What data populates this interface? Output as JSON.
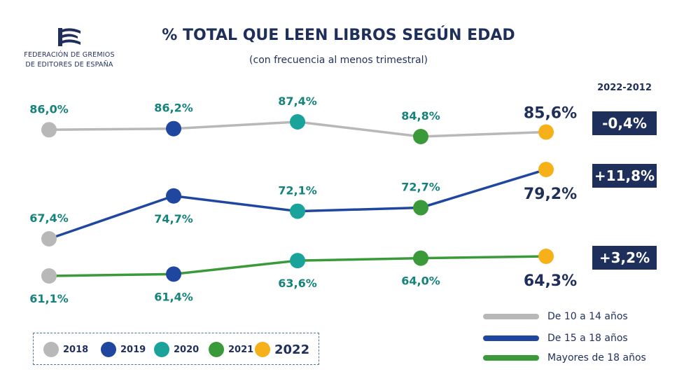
{
  "brand": {
    "line1": "FEDERACIÓN DE GREMIOS",
    "line2": "DE EDITORES DE ESPAÑA"
  },
  "header": {
    "title": "% TOTAL QUE LEEN LIBROS SEGÚN EDAD",
    "subtitle": "(con frecuencia al menos trimestral)"
  },
  "diff_header": "2022-2012",
  "colors": {
    "2018": "#b8b8b8",
    "2019": "#1f47a0",
    "2020": "#1aa39a",
    "2021": "#3a9a3a",
    "2022": "#f5b01a",
    "navy": "#1f2f5c",
    "teal_text": "#15837b"
  },
  "year_legend": [
    {
      "label": "2018",
      "color": "#b8b8b8"
    },
    {
      "label": "2019",
      "color": "#1f47a0"
    },
    {
      "label": "2020",
      "color": "#1aa39a"
    },
    {
      "label": "2021",
      "color": "#3a9a3a"
    },
    {
      "label": "2022",
      "color": "#f5b01a"
    }
  ],
  "chart_data": {
    "type": "line",
    "title": "% TOTAL QUE LEEN LIBROS SEGÚN EDAD",
    "subtitle": "(con frecuencia al menos trimestral)",
    "x": [
      "2018",
      "2019",
      "2020",
      "2021",
      "2022"
    ],
    "series": [
      {
        "name": "De 10 a 14 años",
        "line_color": "#b8b8b8",
        "values": [
          86.0,
          86.2,
          87.4,
          84.8,
          85.6
        ],
        "labels": [
          "86,0%",
          "86,2%",
          "87,4%",
          "84,8%",
          "85,6%"
        ],
        "diff": "-0,4%"
      },
      {
        "name": "De 15 a 18 años",
        "line_color": "#1f47a0",
        "values": [
          67.4,
          74.7,
          72.1,
          72.7,
          79.2
        ],
        "labels": [
          "67,4%",
          "74,7%",
          "72,1%",
          "72,7%",
          "79,2%"
        ],
        "diff": "+11,8%"
      },
      {
        "name": "Mayores de 18 años",
        "line_color": "#3a9a3a",
        "values": [
          61.1,
          61.4,
          63.6,
          64.0,
          64.3
        ],
        "labels": [
          "61,1%",
          "61,4%",
          "63,6%",
          "64,0%",
          "64,3%"
        ],
        "diff": "+3,2%"
      }
    ],
    "grid": false,
    "legend_position": "bottom-right"
  }
}
